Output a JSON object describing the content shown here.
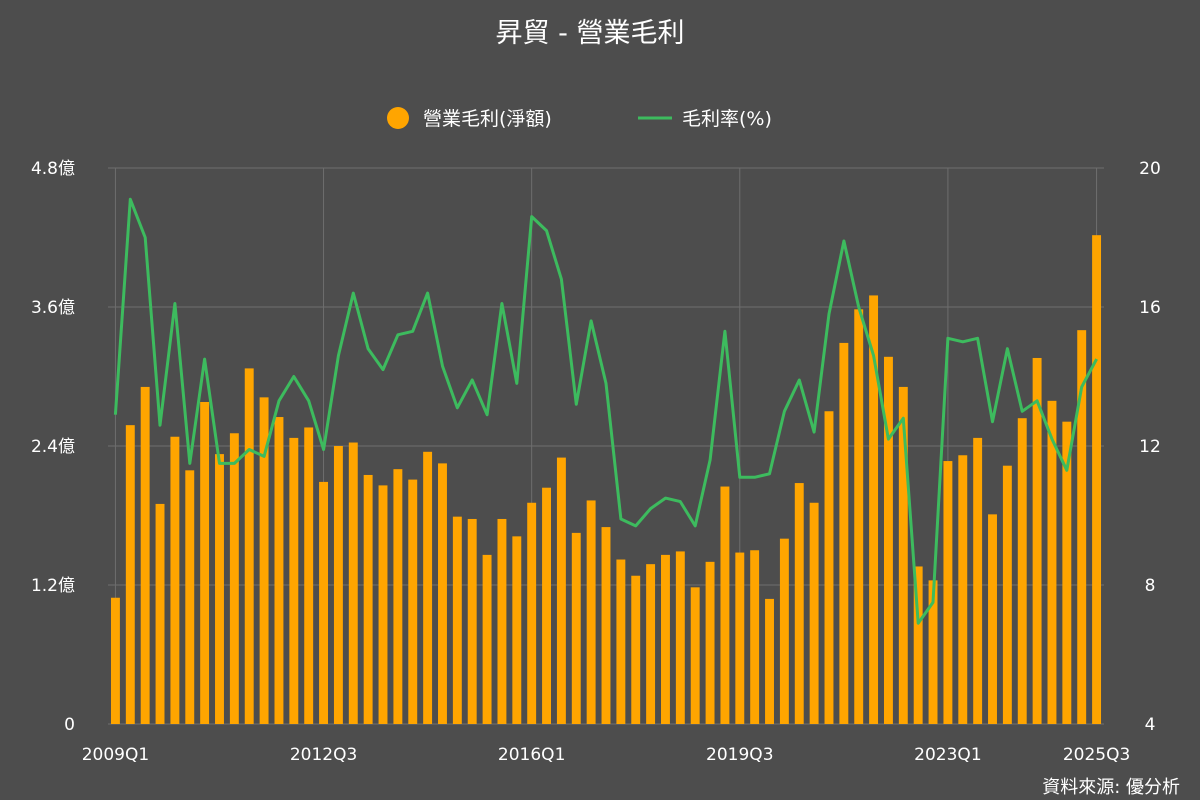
{
  "chart_data": {
    "type": "bar",
    "title": "昇貿 - 營業毛利",
    "source": "資料來源: 優分析",
    "legend": {
      "placement": "top-center",
      "items": [
        {
          "label": "營業毛利(淨額)",
          "kind": "bar"
        },
        {
          "label": "毛利率(%)",
          "kind": "line"
        }
      ]
    },
    "x_tick_labels": [
      "2009Q1",
      "2012Q3",
      "2016Q1",
      "2019Q3",
      "2023Q1",
      "2025Q3"
    ],
    "x_tick_indices": [
      0,
      14,
      28,
      42,
      56,
      66
    ],
    "y_left": {
      "ticks": [
        0,
        1.2,
        2.4,
        3.6,
        4.8
      ],
      "tick_labels": [
        "0",
        "1.2億",
        "2.4億",
        "3.6億",
        "4.8億"
      ],
      "range": [
        0,
        4.8
      ],
      "unit": "億"
    },
    "y_right": {
      "ticks": [
        4,
        8,
        12,
        16,
        20
      ],
      "tick_labels": [
        "4",
        "8",
        "12",
        "16",
        "20"
      ],
      "range": [
        4,
        20
      ]
    },
    "grid": true,
    "colors": {
      "bar": "#ffa500",
      "line": "#3dbb5e",
      "background": "#4d4d4d",
      "grid": "#6e6e6e"
    },
    "categories": [
      "2009Q1",
      "2009Q2",
      "2009Q3",
      "2009Q4",
      "2010Q1",
      "2010Q2",
      "2010Q3",
      "2010Q4",
      "2011Q1",
      "2011Q2",
      "2011Q3",
      "2011Q4",
      "2012Q1",
      "2012Q2",
      "2012Q3",
      "2012Q4",
      "2013Q1",
      "2013Q2",
      "2013Q3",
      "2013Q4",
      "2014Q1",
      "2014Q2",
      "2014Q3",
      "2014Q4",
      "2015Q1",
      "2015Q2",
      "2015Q3",
      "2015Q4",
      "2016Q1",
      "2016Q2",
      "2016Q3",
      "2016Q4",
      "2017Q1",
      "2017Q2",
      "2017Q3",
      "2017Q4",
      "2018Q1",
      "2018Q2",
      "2018Q3",
      "2018Q4",
      "2019Q1",
      "2019Q2",
      "2019Q3",
      "2019Q4",
      "2020Q1",
      "2020Q2",
      "2020Q3",
      "2020Q4",
      "2021Q1",
      "2021Q2",
      "2021Q3",
      "2021Q4",
      "2022Q1",
      "2022Q2",
      "2022Q3",
      "2022Q4",
      "2023Q1",
      "2023Q2",
      "2023Q3",
      "2023Q4",
      "2024Q1",
      "2024Q2",
      "2024Q3",
      "2024Q4",
      "2025Q1",
      "2025Q2",
      "2025Q3"
    ],
    "series": [
      {
        "name": "營業毛利(淨額)",
        "type": "bar",
        "axis": "left",
        "values": [
          1.09,
          2.58,
          2.91,
          1.9,
          2.48,
          2.19,
          2.78,
          2.33,
          2.51,
          3.07,
          2.82,
          2.65,
          2.47,
          2.56,
          2.09,
          2.4,
          2.43,
          2.15,
          2.06,
          2.2,
          2.11,
          2.35,
          2.25,
          1.79,
          1.77,
          1.46,
          1.77,
          1.62,
          1.91,
          2.04,
          2.3,
          1.65,
          1.93,
          1.7,
          1.42,
          1.28,
          1.38,
          1.46,
          1.49,
          1.18,
          1.4,
          2.05,
          1.48,
          1.5,
          1.08,
          1.6,
          2.08,
          1.91,
          2.7,
          3.29,
          3.58,
          3.7,
          3.17,
          2.91,
          1.36,
          1.24,
          2.27,
          2.32,
          2.47,
          1.81,
          2.23,
          2.64,
          3.16,
          2.79,
          2.61,
          3.4,
          4.22
        ]
      },
      {
        "name": "毛利率(%)",
        "type": "line",
        "axis": "right",
        "values": [
          12.9,
          19.1,
          18.0,
          12.6,
          16.1,
          11.5,
          14.5,
          11.5,
          11.5,
          11.9,
          11.7,
          13.3,
          14.0,
          13.3,
          11.9,
          14.6,
          16.4,
          14.8,
          14.2,
          15.2,
          15.3,
          16.4,
          14.3,
          13.1,
          13.9,
          12.9,
          16.1,
          13.8,
          18.6,
          18.2,
          16.8,
          13.2,
          15.6,
          13.8,
          9.9,
          9.7,
          10.2,
          10.5,
          10.4,
          9.7,
          11.6,
          15.3,
          11.1,
          11.1,
          11.2,
          13.0,
          13.9,
          12.4,
          15.8,
          17.9,
          16.0,
          14.6,
          12.2,
          12.8,
          6.9,
          7.5,
          15.1,
          15.0,
          15.1,
          12.7,
          14.8,
          13.0,
          13.3,
          12.2,
          11.3,
          13.7,
          14.5
        ]
      }
    ]
  }
}
